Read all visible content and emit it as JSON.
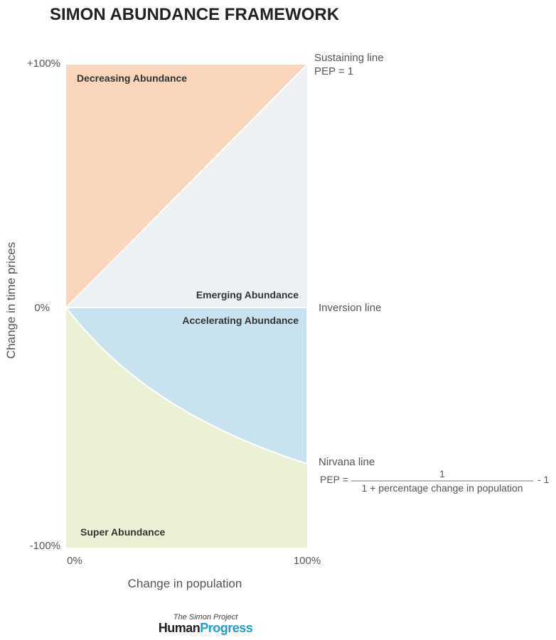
{
  "title": "SIMON ABUNDANCE FRAMEWORK",
  "y_axis": {
    "label": "Change in time prices",
    "ticks": [
      "+100%",
      "0%",
      "-100%"
    ]
  },
  "x_axis": {
    "label": "Change in population",
    "ticks": [
      "0%",
      "100%"
    ]
  },
  "regions": [
    "Decreasing Abundance",
    "Emerging Abundance",
    "Accelerating Abundance",
    "Super Abundance"
  ],
  "lines": {
    "sustaining": [
      "Sustaining line",
      "PEP = 1"
    ],
    "inversion": "Inversion line",
    "nirvana": "Nirvana line"
  },
  "formula": {
    "lhs": "PEP =",
    "numerator": "1",
    "denominator": "1 + percentage change in population",
    "tail": "- 1"
  },
  "footer": {
    "project": "The Simon Project",
    "brand_a": "Human",
    "brand_b": "Progress"
  }
}
